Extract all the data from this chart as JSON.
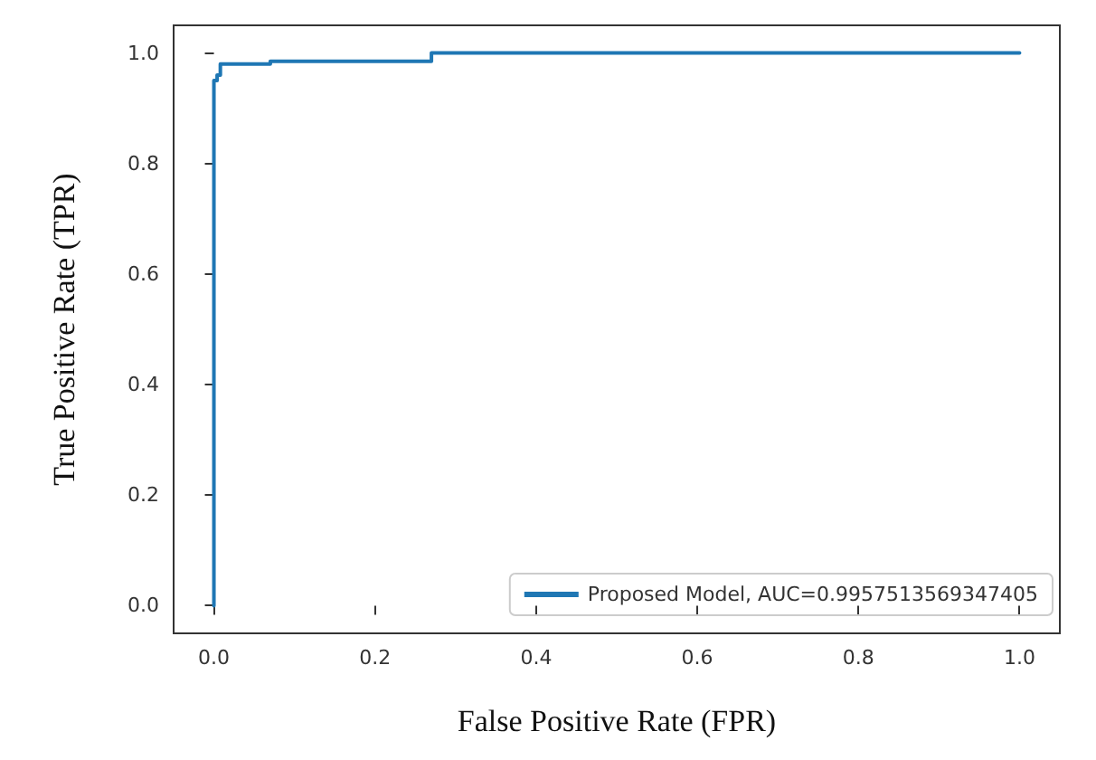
{
  "chart_data": {
    "type": "line",
    "xlabel": "False Positive Rate (FPR)",
    "ylabel": "True Positive Rate (TPR)",
    "xlim": [
      -0.05,
      1.05
    ],
    "ylim": [
      -0.05,
      1.05
    ],
    "xticks": [
      {
        "value": 0,
        "label": "0.0"
      },
      0.2,
      0.4,
      0.6,
      0.8,
      {
        "value": 1,
        "label": "1.0"
      }
    ],
    "yticks": [
      {
        "value": 0,
        "label": "0.0"
      },
      0.2,
      0.4,
      0.6,
      0.8,
      {
        "value": 1,
        "label": "1.0"
      }
    ],
    "grid": false,
    "legend": "bottom right",
    "marker": "none",
    "line_style": "solid",
    "series": [
      {
        "name": "Proposed Model, AUC=0.9957513569347405",
        "color": "#1f77b4",
        "x": [
          0,
          0,
          0.004,
          0.004,
          0.008,
          0.008,
          0.07,
          0.07,
          0.27,
          0.27,
          1
        ],
        "values": [
          0,
          0.95,
          0.95,
          0.96,
          0.96,
          0.98,
          0.98,
          0.985,
          0.985,
          1.0,
          1.0
        ]
      }
    ]
  }
}
